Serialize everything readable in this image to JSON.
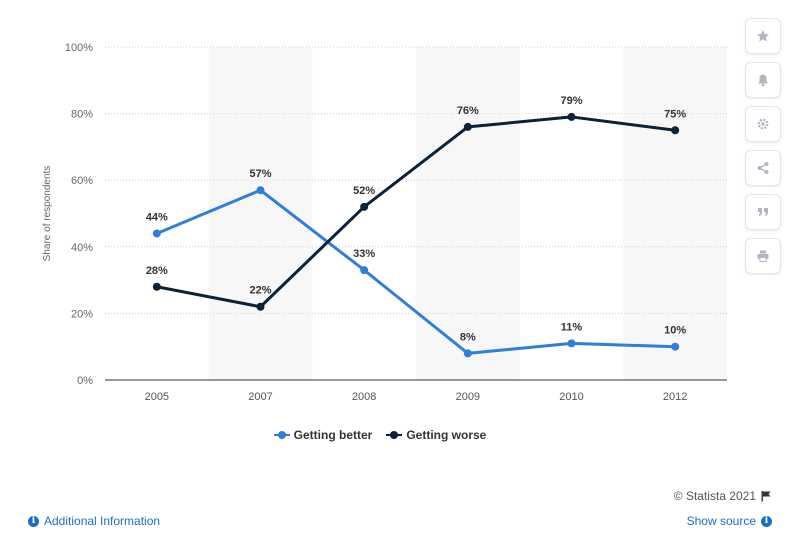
{
  "chart_data": {
    "type": "line",
    "categories": [
      "2005",
      "2007",
      "2008",
      "2009",
      "2010",
      "2012"
    ],
    "series": [
      {
        "name": "Getting better",
        "color": "#2f7ed8",
        "values": [
          44,
          57,
          33,
          8,
          11,
          10
        ]
      },
      {
        "name": "Getting worse",
        "color": "#0d2137",
        "values": [
          28,
          22,
          52,
          76,
          79,
          75
        ]
      }
    ],
    "ylabel": "Share of respondents",
    "ylim": [
      0,
      100
    ],
    "yticks": [
      "0%",
      "20%",
      "40%",
      "60%",
      "80%",
      "100%"
    ],
    "value_suffix": "%",
    "grid": true,
    "legend_position": "bottom-center"
  },
  "legend": {
    "items": [
      {
        "label": "Getting better",
        "color": "#2f7ed8"
      },
      {
        "label": "Getting worse",
        "color": "#0d2137"
      }
    ]
  },
  "toolbar": {
    "buttons": [
      {
        "icon": "star-icon",
        "name": "favorite-button"
      },
      {
        "icon": "bell-icon",
        "name": "notification-button"
      },
      {
        "icon": "gear-icon",
        "name": "settings-button"
      },
      {
        "icon": "share-icon",
        "name": "share-button"
      },
      {
        "icon": "quote-icon",
        "name": "cite-button"
      },
      {
        "icon": "print-icon",
        "name": "print-button"
      }
    ]
  },
  "footer": {
    "credit": "© Statista 2021",
    "additional_info": "Additional Information",
    "show_source": "Show source"
  }
}
